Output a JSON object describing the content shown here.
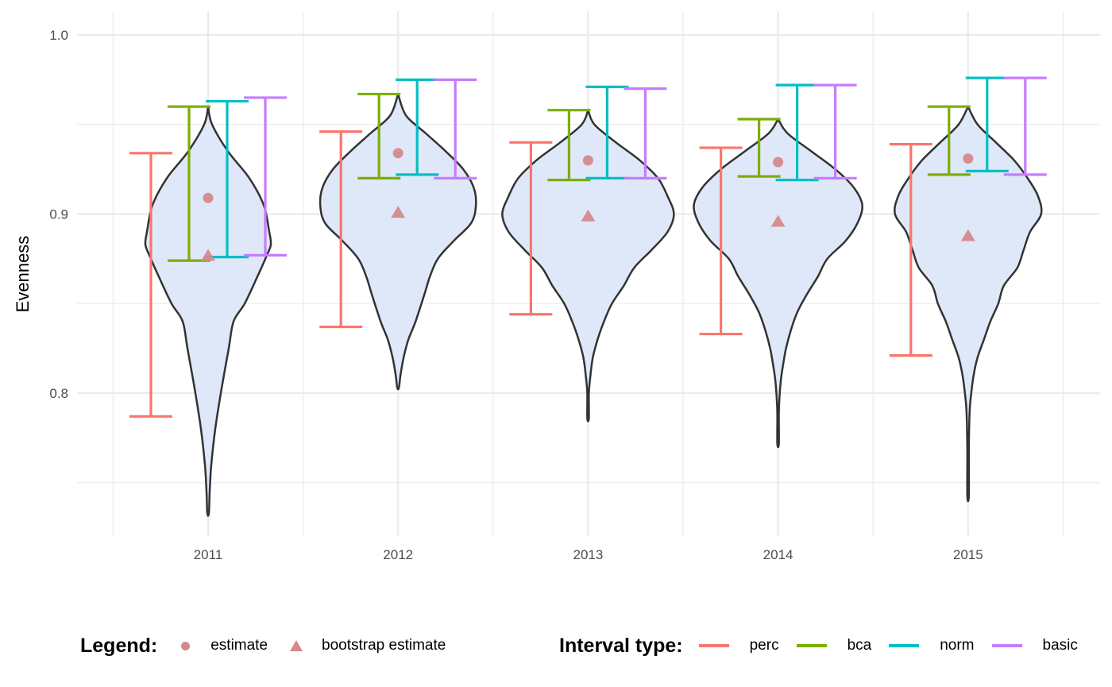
{
  "chart_data": {
    "type": "violin",
    "title": "",
    "xlabel": "",
    "ylabel": "Evenness",
    "ylim": [
      0.72,
      1.013
    ],
    "y_ticks": [
      0.8,
      0.9,
      1.0
    ],
    "y_tick_labels": [
      "0.8",
      "0.9",
      "1.0"
    ],
    "categories": [
      "2011",
      "2012",
      "2013",
      "2014",
      "2015"
    ],
    "grid": true,
    "legend_position": "bottom",
    "colors": {
      "perc": "#F8766D",
      "bca": "#7CAE00",
      "norm": "#00BFC4",
      "basic": "#C77CFF",
      "point": "#D4898C",
      "violin_fill": "#dfe8f8",
      "violin_stroke": "#333333"
    },
    "estimate": [
      0.909,
      0.934,
      0.93,
      0.929,
      0.931
    ],
    "bootstrap_estimate": [
      0.877,
      0.901,
      0.899,
      0.896,
      0.888
    ],
    "intervals": {
      "perc": {
        "lower": [
          0.787,
          0.837,
          0.844,
          0.833,
          0.821
        ],
        "upper": [
          0.934,
          0.946,
          0.94,
          0.937,
          0.939
        ]
      },
      "bca": {
        "lower": [
          0.874,
          0.92,
          0.919,
          0.921,
          0.922
        ],
        "upper": [
          0.96,
          0.967,
          0.958,
          0.953,
          0.96
        ]
      },
      "norm": {
        "lower": [
          0.876,
          0.922,
          0.92,
          0.919,
          0.924
        ],
        "upper": [
          0.963,
          0.975,
          0.971,
          0.972,
          0.976
        ]
      },
      "basic": {
        "lower": [
          0.877,
          0.92,
          0.92,
          0.92,
          0.922
        ],
        "upper": [
          0.965,
          0.975,
          0.97,
          0.972,
          0.976
        ]
      }
    },
    "violins": [
      {
        "min": 0.733,
        "max": 0.96,
        "profile": [
          [
            0.96,
            0
          ],
          [
            0.95,
            5
          ],
          [
            0.935,
            25
          ],
          [
            0.92,
            52
          ],
          [
            0.905,
            70
          ],
          [
            0.89,
            77
          ],
          [
            0.883,
            79
          ],
          [
            0.877,
            74
          ],
          [
            0.865,
            62
          ],
          [
            0.85,
            46
          ],
          [
            0.84,
            32
          ],
          [
            0.825,
            26
          ],
          [
            0.8,
            16
          ],
          [
            0.78,
            9
          ],
          [
            0.76,
            4
          ],
          [
            0.745,
            2
          ],
          [
            0.733,
            1
          ]
        ]
      },
      {
        "min": 0.803,
        "max": 0.967,
        "profile": [
          [
            0.967,
            0
          ],
          [
            0.955,
            10
          ],
          [
            0.945,
            35
          ],
          [
            0.935,
            60
          ],
          [
            0.925,
            82
          ],
          [
            0.915,
            95
          ],
          [
            0.905,
            98
          ],
          [
            0.895,
            92
          ],
          [
            0.885,
            70
          ],
          [
            0.875,
            50
          ],
          [
            0.865,
            40
          ],
          [
            0.855,
            33
          ],
          [
            0.84,
            22
          ],
          [
            0.83,
            13
          ],
          [
            0.82,
            7
          ],
          [
            0.81,
            3
          ],
          [
            0.803,
            1
          ]
        ]
      },
      {
        "min": 0.786,
        "max": 0.958,
        "profile": [
          [
            0.958,
            0
          ],
          [
            0.95,
            8
          ],
          [
            0.94,
            35
          ],
          [
            0.93,
            65
          ],
          [
            0.92,
            88
          ],
          [
            0.91,
            100
          ],
          [
            0.9,
            108
          ],
          [
            0.89,
            100
          ],
          [
            0.88,
            80
          ],
          [
            0.87,
            58
          ],
          [
            0.86,
            45
          ],
          [
            0.85,
            30
          ],
          [
            0.84,
            20
          ],
          [
            0.83,
            12
          ],
          [
            0.82,
            6
          ],
          [
            0.81,
            3
          ],
          [
            0.8,
            1
          ],
          [
            0.786,
            1
          ]
        ]
      },
      {
        "min": 0.772,
        "max": 0.953,
        "profile": [
          [
            0.953,
            0
          ],
          [
            0.945,
            12
          ],
          [
            0.935,
            42
          ],
          [
            0.925,
            72
          ],
          [
            0.915,
            95
          ],
          [
            0.905,
            106
          ],
          [
            0.895,
            100
          ],
          [
            0.885,
            85
          ],
          [
            0.875,
            62
          ],
          [
            0.865,
            50
          ],
          [
            0.855,
            36
          ],
          [
            0.845,
            24
          ],
          [
            0.835,
            16
          ],
          [
            0.825,
            10
          ],
          [
            0.815,
            6
          ],
          [
            0.805,
            3
          ],
          [
            0.79,
            1
          ],
          [
            0.772,
            1
          ]
        ]
      },
      {
        "min": 0.743,
        "max": 0.96,
        "profile": [
          [
            0.96,
            0
          ],
          [
            0.95,
            12
          ],
          [
            0.94,
            35
          ],
          [
            0.93,
            58
          ],
          [
            0.92,
            75
          ],
          [
            0.91,
            88
          ],
          [
            0.9,
            92
          ],
          [
            0.89,
            78
          ],
          [
            0.88,
            70
          ],
          [
            0.87,
            62
          ],
          [
            0.86,
            45
          ],
          [
            0.85,
            38
          ],
          [
            0.84,
            28
          ],
          [
            0.83,
            20
          ],
          [
            0.82,
            12
          ],
          [
            0.81,
            7
          ],
          [
            0.8,
            4
          ],
          [
            0.79,
            2
          ],
          [
            0.77,
            1
          ],
          [
            0.743,
            1
          ]
        ]
      }
    ]
  },
  "legend": {
    "shape_title": "Legend:",
    "shape_items": [
      {
        "label": "estimate",
        "shape": "circle"
      },
      {
        "label": "bootstrap estimate",
        "shape": "triangle"
      }
    ],
    "interval_title": "Interval type:",
    "interval_items": [
      {
        "label": "perc",
        "color": "#F8766D"
      },
      {
        "label": "bca",
        "color": "#7CAE00"
      },
      {
        "label": "norm",
        "color": "#00BFC4"
      },
      {
        "label": "basic",
        "color": "#C77CFF"
      }
    ]
  }
}
